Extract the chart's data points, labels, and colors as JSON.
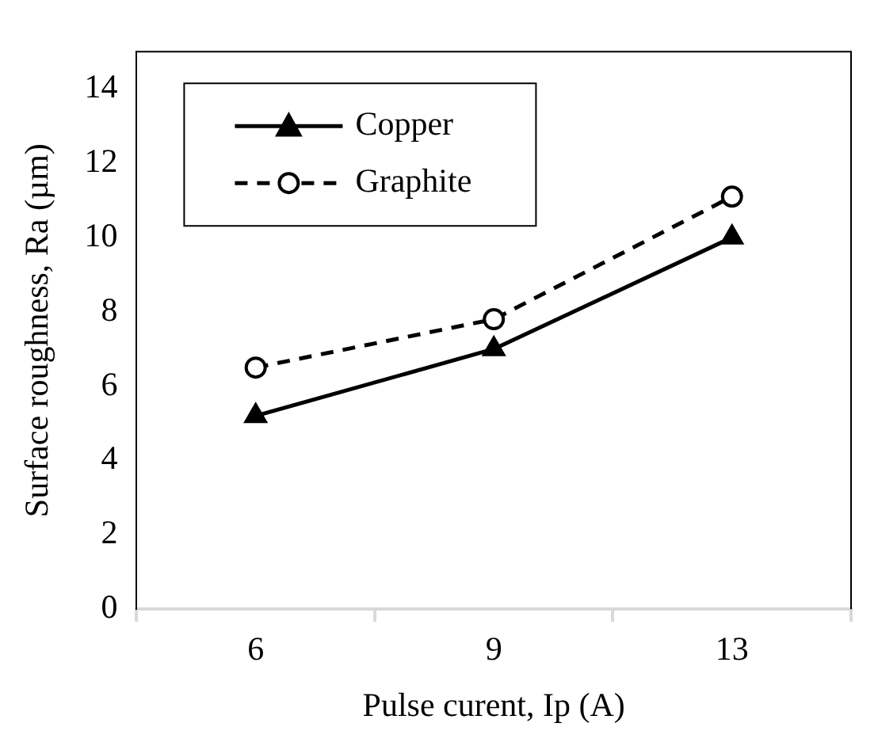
{
  "chart_data": {
    "type": "line",
    "xlabel": "Pulse curent, Ip (A)",
    "ylabel": "Surface roughness, Ra (µm)",
    "categories": [
      "6",
      "9",
      "13"
    ],
    "series": [
      {
        "name": "Copper",
        "color": "#000000",
        "values": [
          5.2,
          7.0,
          10.0
        ],
        "marker": "triangle",
        "line_style": "solid"
      },
      {
        "name": "Graphite",
        "color": "#000000",
        "values": [
          6.5,
          7.8,
          11.1
        ],
        "marker": "circle",
        "line_style": "dashed"
      }
    ],
    "ylim": [
      0,
      15
    ],
    "yticks": [
      0,
      2,
      4,
      6,
      8,
      10,
      12,
      14
    ],
    "grid": false,
    "legend": "top left"
  }
}
